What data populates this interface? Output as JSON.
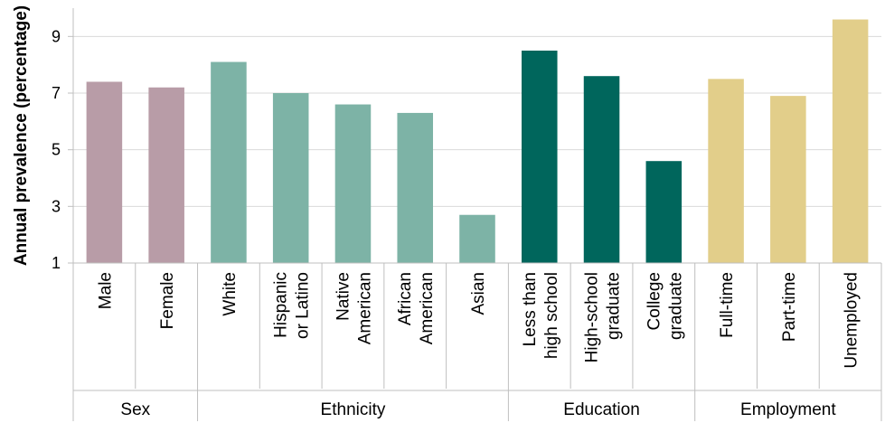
{
  "chart_data": {
    "type": "bar",
    "ylabel": "Annual prevalence (percentage)",
    "ylim": [
      1,
      10
    ],
    "yticks": [
      1,
      3,
      5,
      7,
      9
    ],
    "grid": "horizontal",
    "legend": "none",
    "categories": [
      {
        "label_lines": [
          "Male"
        ],
        "value": 7.4,
        "group": "Sex"
      },
      {
        "label_lines": [
          "Female"
        ],
        "value": 7.2,
        "group": "Sex"
      },
      {
        "label_lines": [
          "White"
        ],
        "value": 8.1,
        "group": "Ethnicity"
      },
      {
        "label_lines": [
          "Hispanic",
          "or Latino"
        ],
        "value": 7.0,
        "group": "Ethnicity"
      },
      {
        "label_lines": [
          "Native",
          "American"
        ],
        "value": 6.6,
        "group": "Ethnicity"
      },
      {
        "label_lines": [
          "African",
          "American"
        ],
        "value": 6.3,
        "group": "Ethnicity"
      },
      {
        "label_lines": [
          "Asian"
        ],
        "value": 2.7,
        "group": "Ethnicity"
      },
      {
        "label_lines": [
          "Less than",
          "high school"
        ],
        "value": 8.5,
        "group": "Education"
      },
      {
        "label_lines": [
          "High-school",
          "graduate"
        ],
        "value": 7.6,
        "group": "Education"
      },
      {
        "label_lines": [
          "College",
          "graduate"
        ],
        "value": 4.6,
        "group": "Education"
      },
      {
        "label_lines": [
          "Full-time"
        ],
        "value": 7.5,
        "group": "Employment"
      },
      {
        "label_lines": [
          "Part-time"
        ],
        "value": 6.9,
        "group": "Employment"
      },
      {
        "label_lines": [
          "Unemployed"
        ],
        "value": 9.6,
        "group": "Employment"
      }
    ],
    "groups": [
      {
        "name": "Sex",
        "color": "#b89ca7"
      },
      {
        "name": "Ethnicity",
        "color": "#7db3a6"
      },
      {
        "name": "Education",
        "color": "#00665c"
      },
      {
        "name": "Employment",
        "color": "#e2ce8a"
      }
    ]
  }
}
